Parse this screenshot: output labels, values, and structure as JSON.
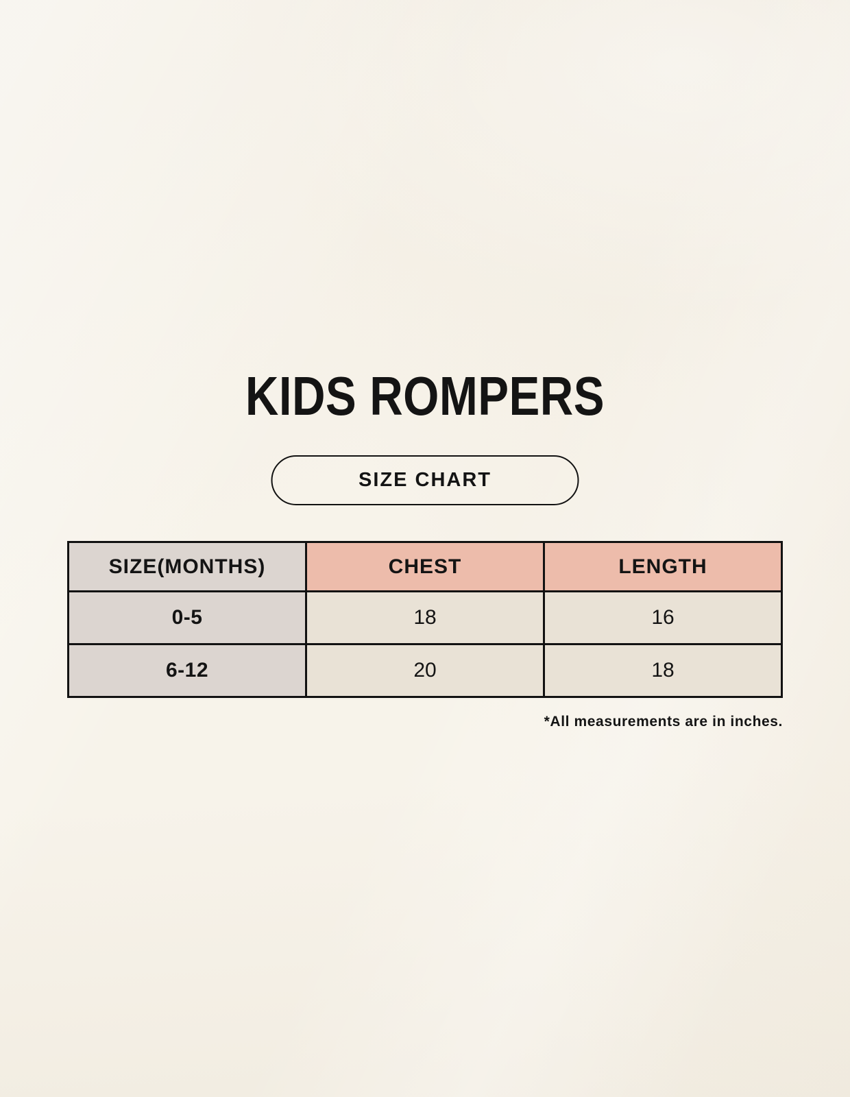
{
  "page": {
    "title": "KIDS ROMPERS"
  },
  "size_chart_button": {
    "label": "SIZE CHART"
  },
  "table": {
    "headers": [
      "SIZE(MONTHS)",
      "CHEST",
      "LENGTH"
    ],
    "rows": [
      {
        "size": "0-5",
        "chest": "18",
        "length": "16"
      },
      {
        "size": "6-12",
        "chest": "20",
        "length": "18"
      }
    ]
  },
  "footnote": "*All measurements are in inches.",
  "colors": {
    "background": "#f7f3ea",
    "table-border": "#121212",
    "size-column-bg": "#dcd5d0",
    "header-accent-bg": "#edbcab",
    "cell-bg": "#e9e2d6",
    "text": "#141414"
  }
}
